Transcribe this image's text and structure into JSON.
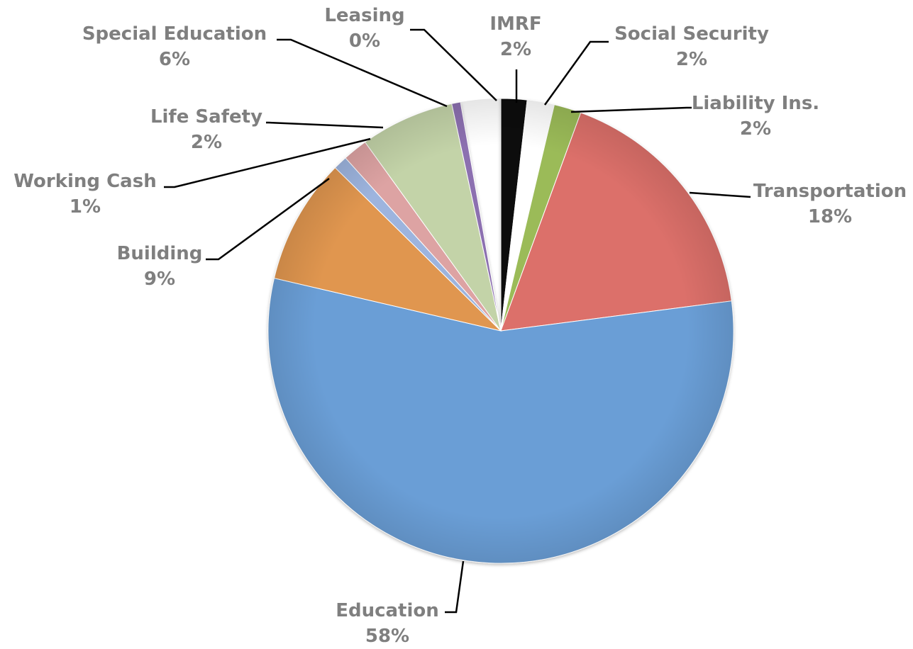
{
  "chart_data": {
    "type": "pie",
    "title": "",
    "slices": [
      {
        "label": "IMRF",
        "value": 2,
        "value_label": "2%",
        "color": "#0d0d0d"
      },
      {
        "label": "Social Security",
        "value": 2,
        "value_label": "2%",
        "color": "#ffffff"
      },
      {
        "label": "Liability Ins.",
        "value": 2,
        "value_label": "2%",
        "color": "#9bbb59"
      },
      {
        "label": "Transportation",
        "value": 18,
        "value_label": "18%",
        "color": "#dc706b"
      },
      {
        "label": "Education",
        "value": 58,
        "value_label": "58%",
        "color": "#6a9ed6"
      },
      {
        "label": "Building",
        "value": 9,
        "value_label": "9%",
        "color": "#e0964f"
      },
      {
        "label": "Working Cash",
        "value": 1,
        "value_label": "1%",
        "color": "#9db4de"
      },
      {
        "label": "Life Safety",
        "value": 2,
        "value_label": "2%",
        "color": "#dda3a3"
      },
      {
        "label": "Special Education",
        "value": 6,
        "value_label": "6%",
        "color": "#c3d3a8"
      },
      {
        "label": "Leasing",
        "value": 0,
        "value_label": "0%",
        "color": "#8c6fb0"
      }
    ]
  }
}
